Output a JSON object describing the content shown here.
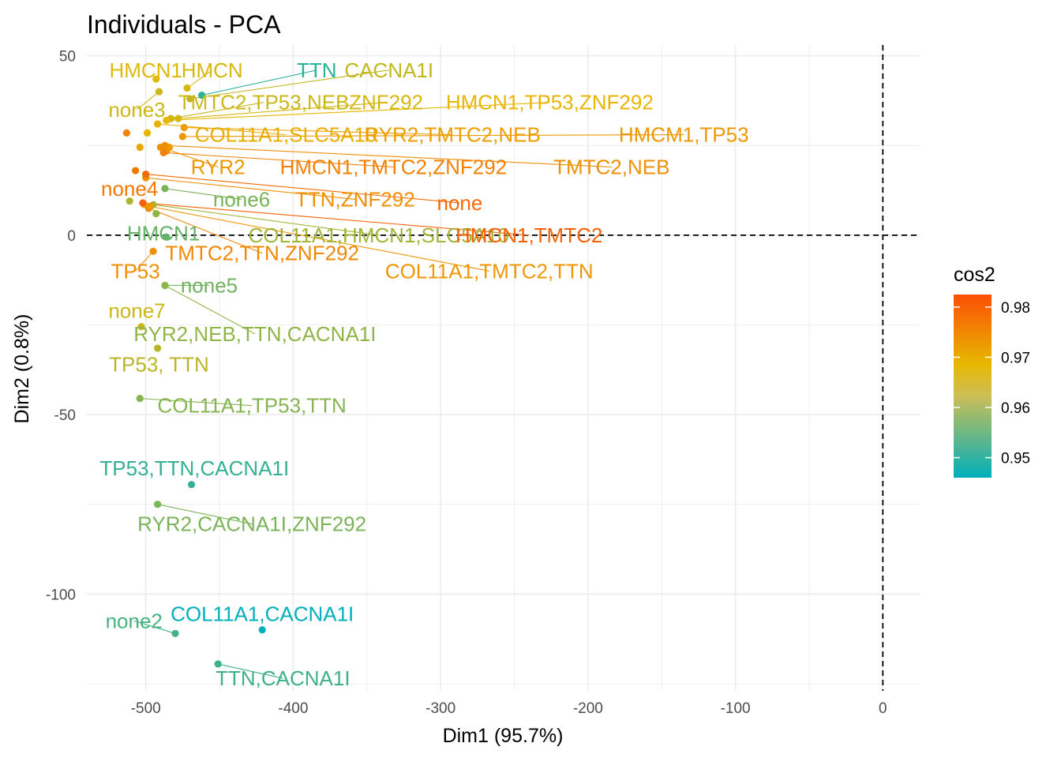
{
  "chart_data": {
    "type": "scatter",
    "title": "Individuals - PCA",
    "xlabel": "Dim1 (95.7%)",
    "ylabel": "Dim2 (0.8%)",
    "xlim": [
      -540,
      25
    ],
    "ylim": [
      -127,
      53
    ],
    "xticks": [
      -500,
      -400,
      -300,
      -200,
      -100,
      0
    ],
    "yticks": [
      50,
      0,
      -50,
      -100
    ],
    "x_tick_labels": [
      "-500",
      "-400",
      "-300",
      "-200",
      "-100",
      "0"
    ],
    "y_tick_labels": [
      "50",
      "0",
      "-50",
      "-100"
    ],
    "grid": true,
    "reference_lines": {
      "x": 0,
      "y": 0,
      "style": "dashed"
    },
    "color_variable": "cos2",
    "colors": {
      "low": "#00AFBB",
      "mid": "#E7B800",
      "high": "#FC4E07"
    },
    "legend": {
      "title": "cos2",
      "position": "right",
      "range": [
        0.946,
        0.9825
      ],
      "ticks": [
        0.95,
        0.96,
        0.97,
        0.98
      ],
      "tick_labels": [
        "0.95",
        "0.96",
        "0.97",
        "0.98"
      ]
    },
    "points": [
      {
        "label": "HMCN1",
        "x": -493,
        "y": 43.5,
        "cos2": 0.968,
        "lx": -500,
        "ly": 46
      },
      {
        "label": "HMCN",
        "x": -472,
        "y": 41,
        "cos2": 0.967,
        "lx": -455,
        "ly": 46
      },
      {
        "label": "TTN",
        "x": -462,
        "y": 39,
        "cos2": 0.95,
        "lx": -384,
        "ly": 46
      },
      {
        "label": "CACNA1I",
        "x": -470,
        "y": 38,
        "cos2": 0.965,
        "lx": -335,
        "ly": 46
      },
      {
        "label": "none3",
        "x": -491,
        "y": 40,
        "cos2": 0.966,
        "lx": -506,
        "ly": 35
      },
      {
        "label": "TMTC2,TP53,NEB",
        "x": -483,
        "y": 32.5,
        "cos2": 0.966,
        "lx": -420,
        "ly": 37
      },
      {
        "label": "ZNF292",
        "x": -478,
        "y": 32.5,
        "cos2": 0.967,
        "lx": -337,
        "ly": 37
      },
      {
        "label": "HMCN1,TP53,ZNF292",
        "x": -486,
        "y": 32,
        "cos2": 0.969,
        "lx": -226,
        "ly": 37
      },
      {
        "label": "COL11A1,SLC5A10",
        "x": -492,
        "y": 31,
        "cos2": 0.97,
        "lx": -405,
        "ly": 28
      },
      {
        "label": "RYR2,TMTC2,NEB",
        "x": -474,
        "y": 30,
        "cos2": 0.972,
        "lx": -292,
        "ly": 28
      },
      {
        "label": "HMCM1,TP53",
        "x": -475,
        "y": 27.5,
        "cos2": 0.973,
        "lx": -135,
        "ly": 28
      },
      {
        "label": "",
        "x": -513,
        "y": 28.5,
        "cos2": 0.976,
        "lx": null,
        "ly": null
      },
      {
        "label": "",
        "x": -499,
        "y": 28.5,
        "cos2": 0.969,
        "lx": null,
        "ly": null
      },
      {
        "label": "",
        "x": -504,
        "y": 24.5,
        "cos2": 0.971,
        "lx": null,
        "ly": null
      },
      {
        "label": "",
        "x": -490,
        "y": 24.5,
        "cos2": 0.974,
        "lx": null,
        "ly": null
      },
      {
        "label": "",
        "x": -486,
        "y": 23.5,
        "cos2": 0.976,
        "lx": null,
        "ly": null
      },
      {
        "label": "",
        "x": -484,
        "y": 24.5,
        "cos2": 0.972,
        "lx": null,
        "ly": null
      },
      {
        "label": "RYR2",
        "x": -486,
        "y": 24,
        "cos2": 0.973,
        "lx": -451,
        "ly": 19
      },
      {
        "label": "HMCN1,TMTC2,ZNF292",
        "x": -488,
        "y": 23,
        "cos2": 0.976,
        "lx": -332,
        "ly": 19
      },
      {
        "label": "TMTC2,NEB",
        "x": -487,
        "y": 25,
        "cos2": 0.974,
        "lx": -184,
        "ly": 19
      },
      {
        "label": "none4",
        "x": -507,
        "y": 18,
        "cos2": 0.977,
        "lx": -511,
        "ly": 13
      },
      {
        "label": "none6",
        "x": -487,
        "y": 13,
        "cos2": 0.958,
        "lx": -435,
        "ly": 10
      },
      {
        "label": "TTN,ZNF292",
        "x": -500,
        "y": 16,
        "cos2": 0.974,
        "lx": -358,
        "ly": 10
      },
      {
        "label": "none",
        "x": -500,
        "y": 17,
        "cos2": 0.979,
        "lx": -287,
        "ly": 9
      },
      {
        "label": "",
        "x": -511,
        "y": 9.5,
        "cos2": 0.963,
        "lx": null,
        "ly": null
      },
      {
        "label": "",
        "x": -501,
        "y": 8.5,
        "cos2": 0.971,
        "lx": null,
        "ly": null
      },
      {
        "label": "",
        "x": -498,
        "y": 7.5,
        "cos2": 0.974,
        "lx": null,
        "ly": null
      },
      {
        "label": "",
        "x": -493,
        "y": 6,
        "cos2": 0.96,
        "lx": null,
        "ly": null
      },
      {
        "label": "HMCN1",
        "x": -486,
        "y": -0.5,
        "cos2": 0.956,
        "lx": -488,
        "ly": 0.5
      },
      {
        "label": "COL11A1,HMCN1,SLC5A10",
        "x": -495,
        "y": 8.5,
        "cos2": 0.962,
        "lx": -342,
        "ly": 0
      },
      {
        "label": "HMCN1,TMTC2",
        "x": -502,
        "y": 9,
        "cos2": 0.98,
        "lx": -240,
        "ly": 0
      },
      {
        "label": "TMTC2,TTN,ZNF292",
        "x": -498,
        "y": 7.5,
        "cos2": 0.975,
        "lx": -421,
        "ly": -5
      },
      {
        "label": "COL11A1,TMTC2,TTN",
        "x": -497,
        "y": 8,
        "cos2": 0.973,
        "lx": -267,
        "ly": -10
      },
      {
        "label": "TP53",
        "x": -495,
        "y": -4.5,
        "cos2": 0.974,
        "lx": -507,
        "ly": -10
      },
      {
        "label": "none5",
        "x": -487,
        "y": -14,
        "cos2": 0.957,
        "lx": -457,
        "ly": -14
      },
      {
        "label": "none7",
        "x": -503,
        "y": -25.5,
        "cos2": 0.966,
        "lx": -506,
        "ly": -21
      },
      {
        "label": "RYR2,NEB,TTN,CACNA1I",
        "x": -487,
        "y": -14,
        "cos2": 0.96,
        "lx": -426,
        "ly": -27.5
      },
      {
        "label": "TP53, TTN",
        "x": -492,
        "y": -31.5,
        "cos2": 0.964,
        "lx": -491,
        "ly": -36
      },
      {
        "label": "COL11A1,TP53,TTN",
        "x": -504,
        "y": -45.5,
        "cos2": 0.959,
        "lx": -428,
        "ly": -47.5
      },
      {
        "label": "TP53,TTN,CACNA1I",
        "x": -469,
        "y": -69.5,
        "cos2": 0.951,
        "lx": -467,
        "ly": -65
      },
      {
        "label": "RYR2,CACNA1I,ZNF292",
        "x": -492,
        "y": -75,
        "cos2": 0.958,
        "lx": -428,
        "ly": -80.5
      },
      {
        "label": "none2",
        "x": -480,
        "y": -111,
        "cos2": 0.953,
        "lx": -508,
        "ly": -107.5
      },
      {
        "label": "COL11A1,CACNA1I",
        "x": -421,
        "y": -110,
        "cos2": 0.946,
        "lx": -421,
        "ly": -105.5
      },
      {
        "label": "TTN,CACNA1I",
        "x": -451,
        "y": -119.5,
        "cos2": 0.952,
        "lx": -407,
        "ly": -123.5
      }
    ]
  }
}
